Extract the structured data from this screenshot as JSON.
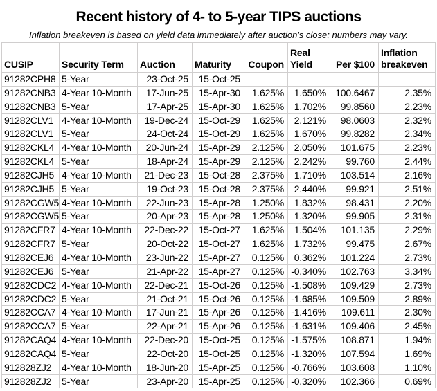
{
  "title": "Recent history of 4- to 5-year TIPS auctions",
  "subtitle": "Inflation breakeven is based on yield data immediately after auction's close; numbers may vary.",
  "colors": {
    "background": "#ffffff",
    "text": "#000000",
    "gridline": "#d0cece"
  },
  "chart_data": {
    "type": "table",
    "title": "Recent history of 4- to 5-year TIPS auctions",
    "note": "Inflation breakeven is based on yield data immediately after auction's close; numbers may vary.",
    "columns": [
      {
        "id": "cusip",
        "lines": [
          "CUSIP"
        ]
      },
      {
        "id": "security-term",
        "lines": [
          "Security Term"
        ]
      },
      {
        "id": "auction",
        "lines": [
          "Auction"
        ]
      },
      {
        "id": "maturity",
        "lines": [
          "Maturity"
        ]
      },
      {
        "id": "coupon",
        "lines": [
          "Coupon"
        ]
      },
      {
        "id": "real-yield",
        "lines": [
          "Real",
          "Yield"
        ]
      },
      {
        "id": "per-100",
        "lines": [
          "Per $100"
        ]
      },
      {
        "id": "inflation-breakeven",
        "lines": [
          "Inflation",
          "breakeven"
        ]
      }
    ],
    "rows": [
      [
        "91282CPH8",
        "5-Year",
        "23-Oct-25",
        "15-Oct-25",
        "",
        "",
        "",
        ""
      ],
      [
        "91282CNB3",
        "4-Year 10-Month",
        "17-Jun-25",
        "15-Apr-30",
        "1.625%",
        "1.650%",
        "100.6467",
        "2.35%"
      ],
      [
        "91282CNB3",
        "5-Year",
        "17-Apr-25",
        "15-Apr-30",
        "1.625%",
        "1.702%",
        "99.8560",
        "2.23%"
      ],
      [
        "91282CLV1",
        "4-Year 10-Month",
        "19-Dec-24",
        "15-Oct-29",
        "1.625%",
        "2.121%",
        "98.0603",
        "2.32%"
      ],
      [
        "91282CLV1",
        "5-Year",
        "24-Oct-24",
        "15-Oct-29",
        "1.625%",
        "1.670%",
        "99.8282",
        "2.34%"
      ],
      [
        "91282CKL4",
        "4-Year 10-Month",
        "20-Jun-24",
        "15-Apr-29",
        "2.125%",
        "2.050%",
        "101.675",
        "2.23%"
      ],
      [
        "91282CKL4",
        "5-Year",
        "18-Apr-24",
        "15-Apr-29",
        "2.125%",
        "2.242%",
        "99.760",
        "2.44%"
      ],
      [
        "91282CJH5",
        "4-Year 10-Month",
        "21-Dec-23",
        "15-Oct-28",
        "2.375%",
        "1.710%",
        "103.514",
        "2.16%"
      ],
      [
        "91282CJH5",
        "5-Year",
        "19-Oct-23",
        "15-Oct-28",
        "2.375%",
        "2.440%",
        "99.921",
        "2.51%"
      ],
      [
        "91282CGW5",
        "4-Year 10-Month",
        "22-Jun-23",
        "15-Apr-28",
        "1.250%",
        "1.832%",
        "98.431",
        "2.20%"
      ],
      [
        "91282CGW5",
        "5-Year",
        "20-Apr-23",
        "15-Apr-28",
        "1.250%",
        "1.320%",
        "99.905",
        "2.31%"
      ],
      [
        "91282CFR7",
        "4-Year 10-Month",
        "22-Dec-22",
        "15-Oct-27",
        "1.625%",
        "1.504%",
        "101.135",
        "2.29%"
      ],
      [
        "91282CFR7",
        "5-Year",
        "20-Oct-22",
        "15-Oct-27",
        "1.625%",
        "1.732%",
        "99.475",
        "2.67%"
      ],
      [
        "91282CEJ6",
        "4-Year 10-Month",
        "23-Jun-22",
        "15-Apr-27",
        "0.125%",
        "0.362%",
        "101.224",
        "2.73%"
      ],
      [
        "91282CEJ6",
        "5-Year",
        "21-Apr-22",
        "15-Apr-27",
        "0.125%",
        "-0.340%",
        "102.763",
        "3.34%"
      ],
      [
        "91282CDC2",
        "4-Year 10-Month",
        "22-Dec-21",
        "15-Oct-26",
        "0.125%",
        "-1.508%",
        "109.429",
        "2.73%"
      ],
      [
        "91282CDC2",
        "5-Year",
        "21-Oct-21",
        "15-Oct-26",
        "0.125%",
        "-1.685%",
        "109.509",
        "2.89%"
      ],
      [
        "91282CCA7",
        "4-Year 10-Month",
        "17-Jun-21",
        "15-Apr-26",
        "0.125%",
        "-1.416%",
        "109.611",
        "2.30%"
      ],
      [
        "91282CCA7",
        "5-Year",
        "22-Apr-21",
        "15-Apr-26",
        "0.125%",
        "-1.631%",
        "109.406",
        "2.45%"
      ],
      [
        "91282CAQ4",
        "4-Year 10-Month",
        "22-Dec-20",
        "15-Oct-25",
        "0.125%",
        "-1.575%",
        "108.871",
        "1.94%"
      ],
      [
        "91282CAQ4",
        "5-Year",
        "22-Oct-20",
        "15-Oct-25",
        "0.125%",
        "-1.320%",
        "107.594",
        "1.69%"
      ],
      [
        "912828ZJ2",
        "4-Year 10-Month",
        "18-Jun-20",
        "15-Apr-25",
        "0.125%",
        "-0.766%",
        "103.608",
        "1.10%"
      ],
      [
        "912828ZJ2",
        "5-Year",
        "23-Apr-20",
        "15-Apr-25",
        "0.125%",
        "-0.320%",
        "102.366",
        "0.69%"
      ]
    ]
  }
}
